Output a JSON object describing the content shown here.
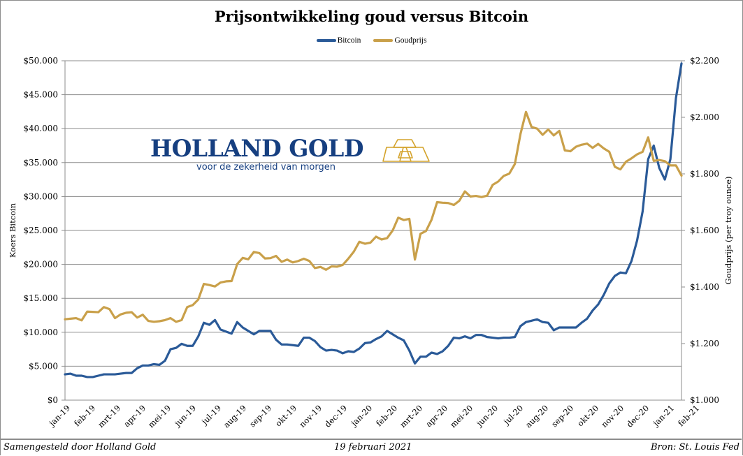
{
  "chart_data": {
    "type": "line",
    "title": "Prijsontwikkeling goud versus Bitcoin",
    "ylabel": "Koers Bitcoin",
    "y2label": "Goudprijs  (per troy ounce)",
    "ylim": [
      0,
      50000
    ],
    "y2lim": [
      1000,
      2200
    ],
    "y_ticks": [
      "$0",
      "$5.000",
      "$10.000",
      "$15.000",
      "$20.000",
      "$25.000",
      "$30.000",
      "$35.000",
      "$40.000",
      "$45.000",
      "$50.000"
    ],
    "y2_ticks": [
      "$1.000",
      "$1.200",
      "$1.400",
      "$1.600",
      "$1.800",
      "$2.000",
      "$2.200"
    ],
    "x_tick_labels": [
      "jan-19",
      "feb-19",
      "mrt-19",
      "apr-19",
      "mei-19",
      "jun-19",
      "jul-19",
      "aug-19",
      "sep-19",
      "okt-19",
      "nov-19",
      "dec-19",
      "jan-20",
      "feb-20",
      "mrt-20",
      "apr-20",
      "mei-20",
      "jun-20",
      "jul-20",
      "aug-20",
      "sep-20",
      "okt-20",
      "nov-20",
      "dec-20",
      "jan-21",
      "feb-21"
    ],
    "x_frequency": "weekly",
    "grid": true,
    "legend_position": "top",
    "series": [
      {
        "name": "Bitcoin",
        "axis": "left",
        "color": "#2a5a98",
        "values": [
          3800,
          3900,
          3600,
          3600,
          3400,
          3400,
          3600,
          3800,
          3800,
          3800,
          3900,
          4000,
          4000,
          4700,
          5100,
          5100,
          5300,
          5200,
          5800,
          7500,
          7700,
          8300,
          8000,
          8000,
          9400,
          11400,
          11100,
          11800,
          10400,
          10100,
          9800,
          11500,
          10700,
          10200,
          9700,
          10200,
          10200,
          10200,
          8900,
          8200,
          8200,
          8100,
          8000,
          9200,
          9200,
          8700,
          7800,
          7300,
          7400,
          7300,
          6900,
          7200,
          7100,
          7600,
          8400,
          8500,
          9000,
          9400,
          10200,
          9700,
          9200,
          8800,
          7300,
          5400,
          6400,
          6400,
          7000,
          6800,
          7200,
          8000,
          9200,
          9100,
          9400,
          9100,
          9600,
          9600,
          9300,
          9200,
          9100,
          9200,
          9200,
          9300,
          10900,
          11500,
          11700,
          11900,
          11500,
          11400,
          10300,
          10700,
          10700,
          10700,
          10700,
          11400,
          12000,
          13200,
          14100,
          15500,
          17200,
          18300,
          18800,
          18700,
          20500,
          23500,
          27800,
          35500,
          37500,
          34200,
          32500,
          35500,
          44500,
          49600
        ]
      },
      {
        "name": "Goudprijs",
        "axis": "right",
        "color": "#c9a04a",
        "values": [
          1286,
          1288,
          1290,
          1282,
          1313,
          1312,
          1311,
          1329,
          1322,
          1290,
          1303,
          1309,
          1311,
          1292,
          1302,
          1280,
          1277,
          1279,
          1283,
          1290,
          1277,
          1283,
          1329,
          1336,
          1356,
          1411,
          1407,
          1402,
          1416,
          1420,
          1421,
          1481,
          1503,
          1498,
          1524,
          1520,
          1501,
          1502,
          1510,
          1489,
          1497,
          1487,
          1492,
          1500,
          1492,
          1467,
          1471,
          1461,
          1473,
          1472,
          1478,
          1500,
          1525,
          1560,
          1553,
          1557,
          1578,
          1568,
          1573,
          1600,
          1645,
          1637,
          1641,
          1497,
          1588,
          1598,
          1638,
          1700,
          1698,
          1697,
          1690,
          1705,
          1738,
          1720,
          1722,
          1718,
          1723,
          1761,
          1773,
          1793,
          1801,
          1835,
          1940,
          2019,
          1966,
          1960,
          1938,
          1957,
          1936,
          1952,
          1883,
          1880,
          1896,
          1903,
          1907,
          1892,
          1906,
          1890,
          1878,
          1825,
          1816,
          1843,
          1855,
          1869,
          1878,
          1929,
          1846,
          1849,
          1845,
          1830,
          1830,
          1794
        ]
      }
    ]
  },
  "logo": {
    "name": "HOLLAND GOLD",
    "tagline": "voor de zekerheid van morgen",
    "text_color": "#163f80",
    "icon_color": "#d4a32c"
  },
  "footer": {
    "left": "Samengesteld door Holland Gold",
    "middle": "19 februari 2021",
    "right": "Bron: St. Louis Fed"
  },
  "colors": {
    "bitcoin": "#2a5a98",
    "gold": "#c9a04a",
    "grid": "#8c8c8c"
  }
}
